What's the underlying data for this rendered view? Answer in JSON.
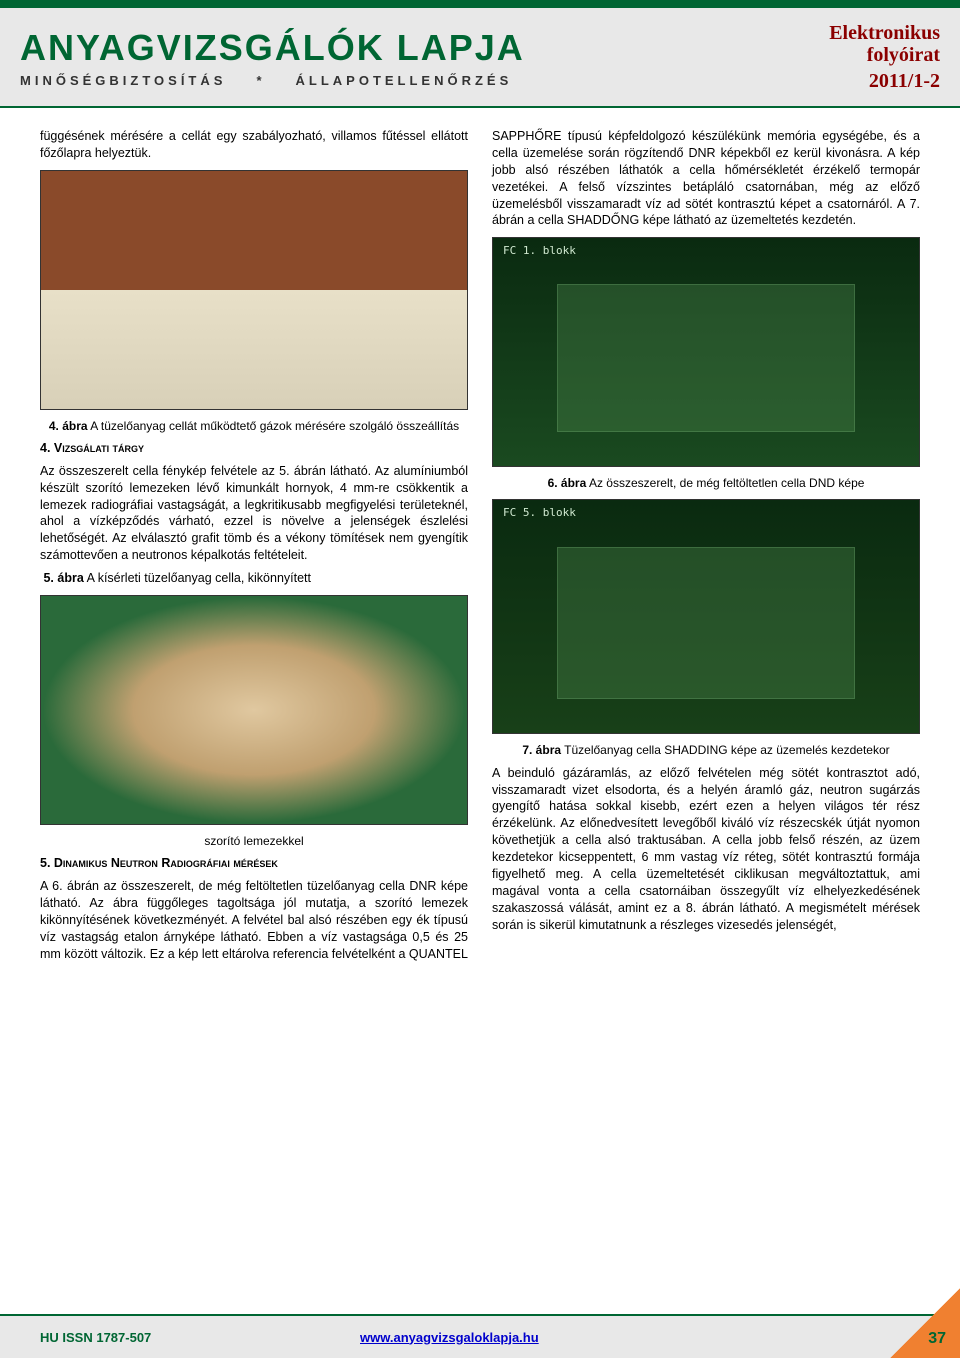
{
  "header": {
    "title": "ANYAGVIZSGÁLÓK LAPJA",
    "subtitle_left": "MINŐSÉGBIZTOSÍTÁS",
    "subtitle_sep": "*",
    "subtitle_right": "ÁLLAPOTELLENŐRZÉS",
    "journal_type_1": "Elektronikus",
    "journal_type_2": "folyóirat",
    "issue": "2011/1-2"
  },
  "left_col": {
    "p1": "függésének mérésére a cellát egy szabályozható, villamos fűtéssel ellátott főzőlapra helyeztük.",
    "fig4_caption_b": "4. ábra",
    "fig4_caption": " A tüzelőanyag cellát működtető gázok mérésére szolgáló összeállítás",
    "sec4_head": "4. Vizsgálati tárgy",
    "sec4_body": "Az összeszerelt cella fénykép felvétele az 5. ábrán látható. Az alumíniumból készült szorító lemezeken lévő kimunkált hornyok, 4 mm-re csökkentik a lemezek radiográfiai vastagságát, a legkritikusabb megfigyelési területeknél, ahol a vízképződés várható, ezzel is növelve a jelenségek észlelési lehetőségét. Az elválasztó grafit tömb és a vékony tömítések nem gyengítik számottevően a neutronos képalkotás feltételeit.",
    "fig5_inline_b": "5. ábra",
    "fig5_inline": " A kísérleti tüzelőanyag cella, kikönnyített",
    "fig5_caption_cont": "szorító lemezekkel",
    "sec5_head": "5. Dinamikus Neutron Radiográfiai mérések",
    "sec5_body": "A 6. ábrán az összeszerelt, de még feltöltetlen tüzelőanyag cella DNR képe látható. Az ábra függőleges tagoltsága jól mutatja, a szorító lemezek kikönnyítésének következményét. A felvétel bal alsó részében egy ék típusú víz vastagság etalon árnyképe látható. Ebben a víz vastagsága 0,5 és 25 mm között változik. Ez a kép lett eltárolva referencia felvételként a QUANTEL"
  },
  "right_col": {
    "p1": "SAPPHŐRE típusú képfeldolgozó készülékünk memória egységébe, és a cella üzemelése során rögzítendő DNR képekből ez kerül kivonásra. A kép jobb alsó részében láthatók a cella hőmérsékletét érzékelő termopár vezetékei. A felső vízszintes betápláló csatornában, még az előző üzemelésből visszamaradt víz ad sötét kontrasztú képet a csatornáról. A 7. ábrán a cella SHADDŐNG képe látható az üzemeltetés kezdetén.",
    "dnd1_label": "FC 1. blokk",
    "fig6_caption_b": "6. ábra",
    "fig6_caption": " Az összeszerelt, de még feltöltetlen cella DND képe",
    "dnd2_label": "FC 5. blokk",
    "fig7_caption_b": "7. ábra",
    "fig7_caption": " Tüzelőanyag cella SHADDING képe az üzemelés kezdetekor",
    "p2": "A beinduló gázáramlás, az előző felvételen még sötét kontrasztot adó, visszamaradt vizet elsodorta, és a helyén áramló gáz, neutron sugárzás gyengítő hatása sokkal kisebb, ezért ezen a helyen világos tér rész érzékelünk. Az előnedvesített levegőből kiváló víz részecskék útját nyomon követhetjük a cella alsó traktusában. A cella jobb felső részén, az üzem kezdetekor kicseppentett, 6 mm vastag víz réteg, sötét kontrasztú formája figyelhető meg. A cella üzemeltetését ciklikusan megváltoztattuk, ami magával vonta a cella csatornáiban összegyűlt víz elhelyezkedésének szakaszossá válását, amint ez a 8. ábrán látható. A megismételt mérések során is sikerül kimutatnunk a részleges vizesedés jelenségét,"
  },
  "footer": {
    "issn": "HU ISSN 1787-507",
    "url": "www.anyagvizsgaloklapja.hu",
    "page_num": "37"
  },
  "colors": {
    "accent": "#006633",
    "header_bg": "#e8e8e8",
    "issue_color": "#8b0000",
    "link": "#0000cc",
    "corner": "#f08030"
  }
}
